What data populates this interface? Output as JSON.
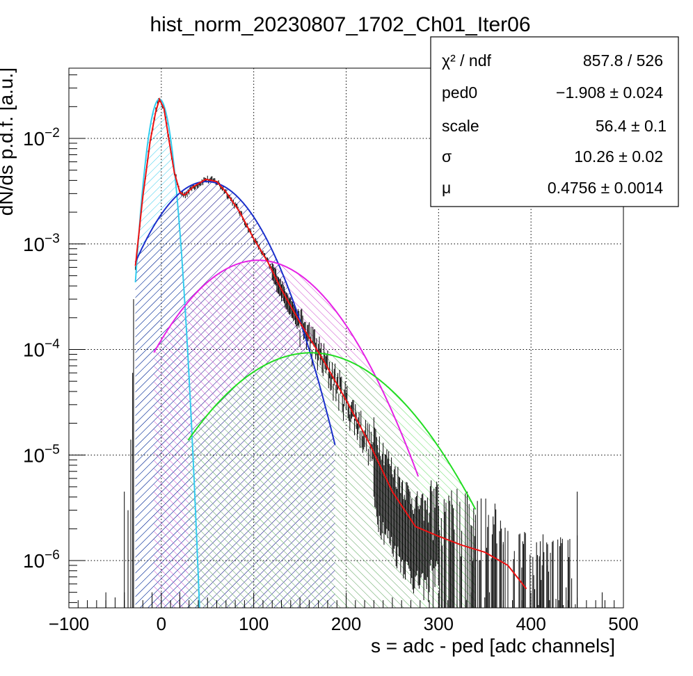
{
  "chart_data": {
    "type": "histogram",
    "title": "hist_norm_20230807_1702_Ch01_Iter06",
    "xlabel": "s = adc - ped [adc channels]",
    "ylabel": "dN/ds p.d.f. [a.u.]",
    "xlim": [
      -100,
      500
    ],
    "ylim": [
      3.5e-07,
      0.045
    ],
    "yscale": "log",
    "grid": true,
    "x_ticks": [
      "−100",
      "0",
      "100",
      "200",
      "300",
      "400",
      "500"
    ],
    "y_ticks": [
      {
        "base": "10",
        "exp": "−2"
      },
      {
        "base": "10",
        "exp": "−3"
      },
      {
        "base": "10",
        "exp": "−4"
      },
      {
        "base": "10",
        "exp": "−5"
      },
      {
        "base": "10",
        "exp": "−6"
      }
    ],
    "fit": {
      "ped0": -1.908,
      "scale": 56.4,
      "sigma": 10.26,
      "mu": 0.4756
    },
    "stats_box": {
      "rows": [
        {
          "label": "χ² / ndf",
          "value": "857.8 / 526"
        },
        {
          "label": "ped0",
          "value": "−1.908 ± 0.024"
        },
        {
          "label": "scale",
          "value": "56.4  ± 0.1"
        },
        {
          "label": "σ",
          "value": "10.26 ± 0.02"
        },
        {
          "label": "μ",
          "value": "0.4756 ± 0.0014"
        }
      ]
    },
    "components": [
      {
        "n": 0,
        "peak_x": -2,
        "peak_y": 0.0235,
        "color": "#33ccee",
        "x_range": [
          -28,
          47
        ]
      },
      {
        "n": 1,
        "peak_x": 49,
        "peak_y": 0.0039,
        "color": "#1a2fcc",
        "x_range": [
          -28,
          188
        ]
      },
      {
        "n": 2,
        "peak_x": 105,
        "peak_y": 0.0007,
        "color": "#e621e6",
        "x_range": [
          -8,
          278
        ]
      },
      {
        "n": 3,
        "peak_x": 162,
        "peak_y": 9.3e-05,
        "color": "#22dd22",
        "x_range": [
          29,
          340
        ]
      }
    ],
    "total_fit": {
      "color": "#ee1111",
      "points": [
        [
          -28,
          0.00062
        ],
        [
          -20,
          0.0028
        ],
        [
          -12,
          0.0095
        ],
        [
          -6,
          0.018
        ],
        [
          -2,
          0.0235
        ],
        [
          3,
          0.019
        ],
        [
          8,
          0.01
        ],
        [
          14,
          0.0048
        ],
        [
          20,
          0.0031
        ],
        [
          25,
          0.0029
        ],
        [
          35,
          0.0035
        ],
        [
          48,
          0.0041
        ],
        [
          60,
          0.0039
        ],
        [
          70,
          0.0031
        ],
        [
          85,
          0.002
        ],
        [
          100,
          0.00112
        ],
        [
          115,
          0.00068
        ],
        [
          130,
          0.00037
        ],
        [
          150,
          0.00018
        ],
        [
          175,
          8e-05
        ],
        [
          200,
          3.3e-05
        ],
        [
          225,
          1.3e-05
        ],
        [
          250,
          4.5e-06
        ],
        [
          275,
          2.1e-06
        ],
        [
          300,
          1.7e-06
        ],
        [
          325,
          1.4e-06
        ],
        [
          350,
          1.2e-06
        ],
        [
          375,
          9e-07
        ],
        [
          395,
          5.4e-07
        ]
      ]
    },
    "data_color": "#000000"
  }
}
